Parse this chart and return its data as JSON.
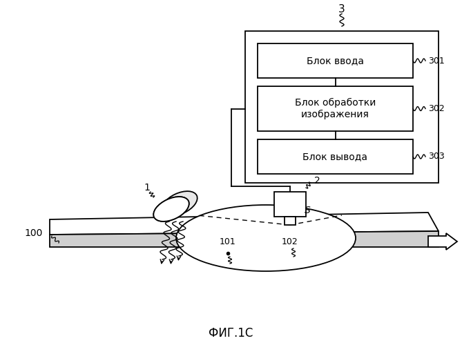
{
  "title": "ФИГ.1С",
  "background_color": "#ffffff",
  "box301_label": "Блок ввода",
  "box302_label": "Блок обработки\nизображения",
  "box303_label": "Блок вывода",
  "label_3": "3",
  "label_301": "301",
  "label_302": "302",
  "label_303": "303",
  "label_1": "1",
  "label_2": "2",
  "label_100": "100",
  "label_S": "S",
  "label_101": "101",
  "label_102": "102"
}
